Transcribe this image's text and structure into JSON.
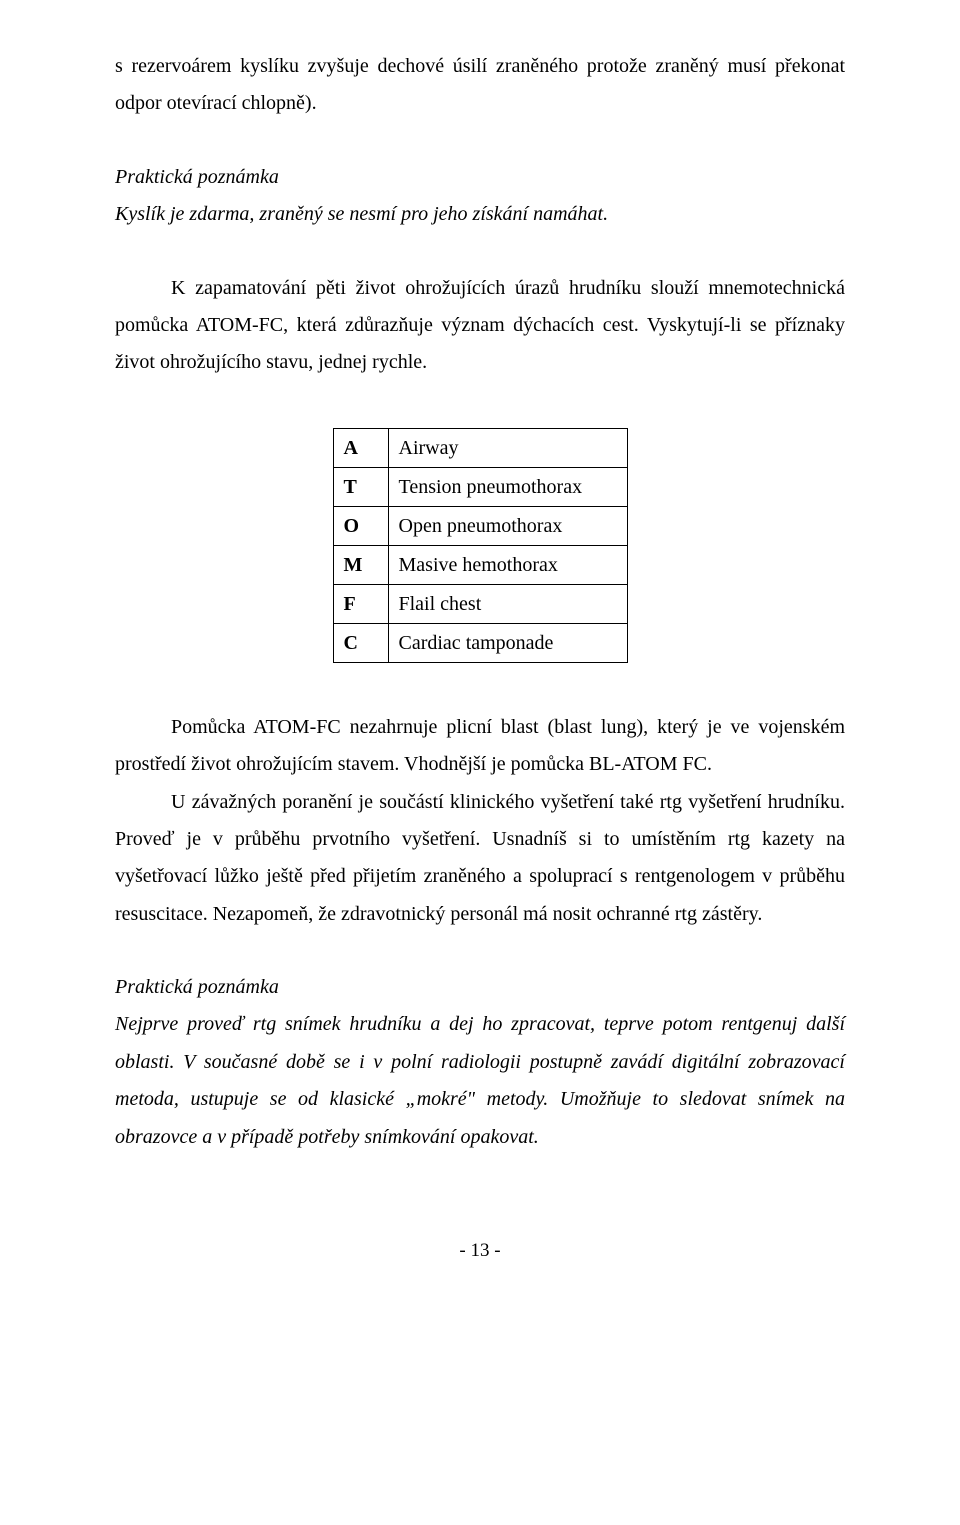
{
  "para1_a": "s rezervoárem kyslíku zvyšuje dechové úsilí zraněného protože zraněný musí překonat odpor otevírací chlopně).",
  "note1_title": "Praktická poznámka",
  "note1_body": "Kyslík je zdarma, zraněný se nesmí pro jeho získání namáhat.",
  "para2": "K zapamatování pěti život ohrožujících úrazů hrudníku slouží mnemotechnická pomůcka ATOM-FC, která zdůrazňuje význam dýchacích cest. Vyskytují-li se příznaky život ohrožujícího stavu, jednej rychle.",
  "table": {
    "rows": [
      {
        "k": "A",
        "v": "Airway"
      },
      {
        "k": "T",
        "v": "Tension pneumothorax"
      },
      {
        "k": "O",
        "v": "Open pneumothorax"
      },
      {
        "k": "M",
        "v": "Masive hemothorax"
      },
      {
        "k": "F",
        "v": "Flail chest"
      },
      {
        "k": "C",
        "v": "Cardiac tamponade"
      }
    ]
  },
  "para3": "Pomůcka ATOM-FC nezahrnuje plicní blast (blast lung), který je ve vojenském prostředí život ohrožujícím stavem. Vhodnější je pomůcka BL-ATOM FC.",
  "para4": "U závažných poranění je součástí klinického vyšetření také rtg vyšetření hrudníku. Proveď je v průběhu prvotního vyšetření. Usnadníš si to umístěním rtg kazety na vyšetřovací lůžko ještě před přijetím zraněného a spoluprací s rentgenologem v průběhu resuscitace. Nezapomeň, že zdravotnický personál má nosit ochranné rtg zástěry.",
  "note2_title": "Praktická poznámka",
  "note2_body": "Nejprve proveď rtg snímek hrudníku a dej ho zpracovat, teprve potom rentgenuj další oblasti. V současné době se i v polní radiologii postupně zavádí digitální zobrazovací metoda, ustupuje se od klasické „mokré\" metody. Umožňuje to sledovat snímek na obrazovce a  v případě potřeby snímkování opakovat.",
  "page_number": "- 13 -"
}
